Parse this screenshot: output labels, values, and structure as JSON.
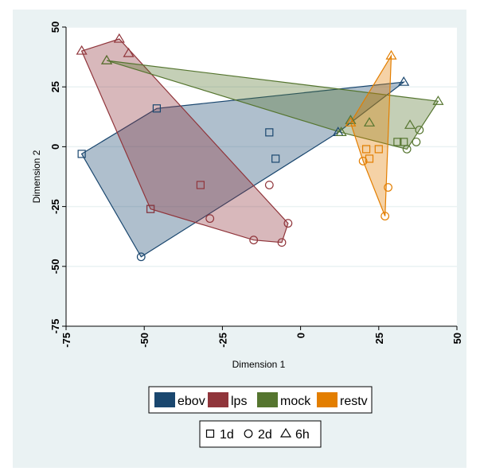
{
  "chart_data": {
    "type": "scatter",
    "title": "",
    "xlabel": "Dimension 1",
    "ylabel": "Dimension 2",
    "xlim": [
      -75,
      50
    ],
    "ylim": [
      -75,
      50
    ],
    "xticks": [
      -75,
      -50,
      -25,
      0,
      25,
      50
    ],
    "yticks": [
      -75,
      -50,
      -25,
      0,
      25,
      50
    ],
    "tick_labels_x": [
      "-75",
      "-50",
      "-25",
      "0",
      "25",
      "50"
    ],
    "tick_labels_y": [
      "-75",
      "-50",
      "-25",
      "0",
      "25",
      "50"
    ],
    "grid": "horizontal",
    "legend_position": "bottom",
    "groups": [
      {
        "name": "ebov",
        "color": "#1a476f",
        "points": [
          {
            "x": -70,
            "y": -3,
            "time": "1d"
          },
          {
            "x": -46,
            "y": 16,
            "time": "1d"
          },
          {
            "x": -48,
            "y": -26,
            "time": "1d"
          },
          {
            "x": -10,
            "y": 6,
            "time": "1d"
          },
          {
            "x": -8,
            "y": -5,
            "time": "1d"
          },
          {
            "x": -51,
            "y": -46,
            "time": "2d"
          },
          {
            "x": 33,
            "y": 27,
            "time": "6h"
          },
          {
            "x": 12,
            "y": 6,
            "time": "6h"
          }
        ]
      },
      {
        "name": "lps",
        "color": "#90353b",
        "points": [
          {
            "x": -32,
            "y": -16,
            "time": "1d"
          },
          {
            "x": -48,
            "y": -26,
            "time": "1d"
          },
          {
            "x": -29,
            "y": -30,
            "time": "2d"
          },
          {
            "x": -15,
            "y": -39,
            "time": "2d"
          },
          {
            "x": -10,
            "y": -16,
            "time": "2d"
          },
          {
            "x": -6,
            "y": -40,
            "time": "2d"
          },
          {
            "x": -4,
            "y": -32,
            "time": "2d"
          },
          {
            "x": -70,
            "y": 40,
            "time": "6h"
          },
          {
            "x": -58,
            "y": 45,
            "time": "6h"
          },
          {
            "x": -55,
            "y": 39,
            "time": "6h"
          },
          {
            "x": -62,
            "y": 36,
            "time": "6h"
          }
        ]
      },
      {
        "name": "mock",
        "color": "#55752f",
        "points": [
          {
            "x": 31,
            "y": 2,
            "time": "1d"
          },
          {
            "x": 33,
            "y": 2,
            "time": "1d"
          },
          {
            "x": 34,
            "y": -1,
            "time": "2d"
          },
          {
            "x": 37,
            "y": 2,
            "time": "2d"
          },
          {
            "x": 38,
            "y": 7,
            "time": "2d"
          },
          {
            "x": -62,
            "y": 36,
            "time": "6h"
          },
          {
            "x": 44,
            "y": 19,
            "time": "6h"
          },
          {
            "x": 16,
            "y": 11,
            "time": "6h"
          },
          {
            "x": 22,
            "y": 10,
            "time": "6h"
          },
          {
            "x": 35,
            "y": 9,
            "time": "6h"
          },
          {
            "x": 13,
            "y": 6,
            "time": "6h"
          }
        ]
      },
      {
        "name": "restv",
        "color": "#e37e00",
        "points": [
          {
            "x": 21,
            "y": -1,
            "time": "1d"
          },
          {
            "x": 22,
            "y": -5,
            "time": "1d"
          },
          {
            "x": 25,
            "y": -1,
            "time": "1d"
          },
          {
            "x": 20,
            "y": -6,
            "time": "2d"
          },
          {
            "x": 28,
            "y": -17,
            "time": "2d"
          },
          {
            "x": 27,
            "y": -29,
            "time": "2d"
          },
          {
            "x": 29,
            "y": 38,
            "time": "6h"
          },
          {
            "x": 16,
            "y": 10,
            "time": "6h"
          }
        ]
      }
    ],
    "hulls": {
      "ebov": [
        [
          -70,
          -3
        ],
        [
          -46,
          16
        ],
        [
          33,
          27
        ],
        [
          12,
          6
        ],
        [
          -51,
          -46
        ]
      ],
      "lps": [
        [
          -70,
          40
        ],
        [
          -58,
          45
        ],
        [
          -4,
          -32
        ],
        [
          -6,
          -40
        ],
        [
          -15,
          -39
        ],
        [
          -48,
          -26
        ]
      ],
      "mock": [
        [
          -62,
          36
        ],
        [
          44,
          19
        ],
        [
          34,
          -1
        ],
        [
          13,
          6
        ]
      ],
      "restv": [
        [
          29,
          38
        ],
        [
          27,
          -29
        ],
        [
          20,
          -6
        ],
        [
          16,
          10
        ]
      ]
    },
    "shape_legend": [
      {
        "symbol": "square",
        "label": "1d"
      },
      {
        "symbol": "circle",
        "label": "2d"
      },
      {
        "symbol": "triangle",
        "label": "6h"
      }
    ]
  }
}
